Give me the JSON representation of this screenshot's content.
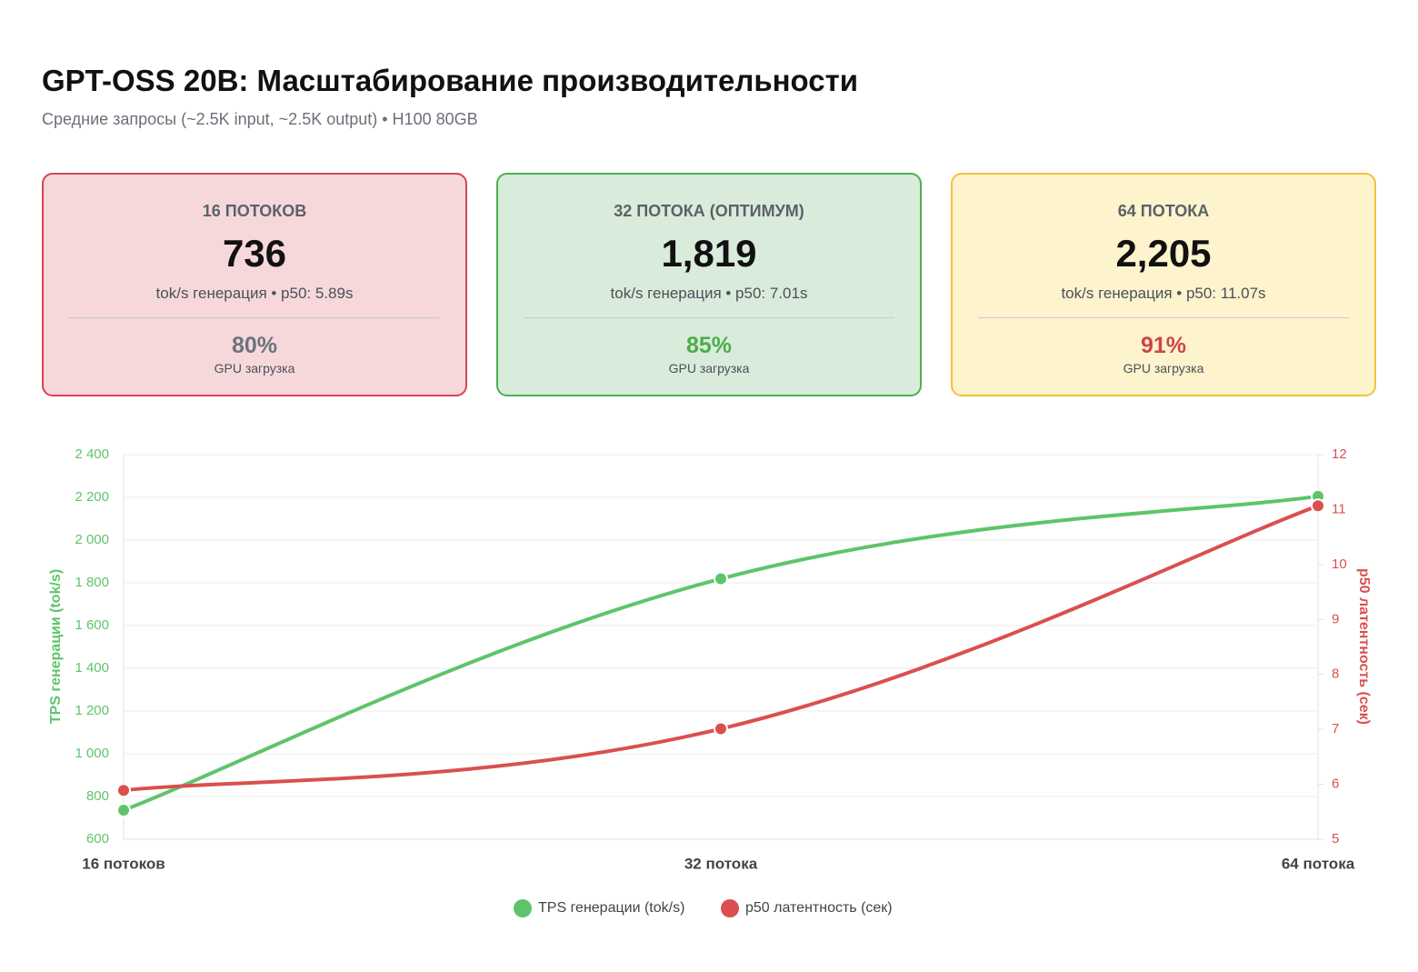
{
  "header": {
    "title": "GPT-OSS 20B: Масштабирование производительности",
    "subtitle": "Средние запросы (~2.5K input, ~2.5K output) • H100 80GB"
  },
  "cards": [
    {
      "label": "16 ПОТОКОВ",
      "value": "736",
      "desc": "tok/s генерация • p50: 5.89s",
      "gpu": "80%",
      "gpu_label": "GPU загрузка"
    },
    {
      "label": "32 ПОТОКА (ОПТИМУМ)",
      "value": "1,819",
      "desc": "tok/s генерация • p50: 7.01s",
      "gpu": "85%",
      "gpu_label": "GPU загрузка"
    },
    {
      "label": "64 ПОТОКА",
      "value": "2,205",
      "desc": "tok/s генерация • p50: 11.07s",
      "gpu": "91%",
      "gpu_label": "GPU загрузка"
    }
  ],
  "chart_data": {
    "type": "line",
    "categories": [
      "16 потоков",
      "32 потока",
      "64 потока"
    ],
    "series": [
      {
        "name": "TPS генерации (tok/s)",
        "color": "#5ec46a",
        "values": [
          736,
          1819,
          2205
        ],
        "axis": "y"
      },
      {
        "name": "p50 латентность (сек)",
        "color": "#d9504f",
        "values": [
          5.89,
          7.01,
          11.07
        ],
        "axis": "y2"
      }
    ],
    "y_label": "TPS генерации (tok/s)",
    "y2_label": "p50 латентность (сек)",
    "ylim": [
      600,
      2400
    ],
    "yticks": [
      600,
      800,
      {
        "value": 1000,
        "label": "1 000"
      },
      {
        "value": 1200,
        "label": "1 200"
      },
      {
        "value": 1400,
        "label": "1 400"
      },
      {
        "value": 1600,
        "label": "1 600"
      },
      {
        "value": 1800,
        "label": "1 800"
      },
      {
        "value": 2000,
        "label": "2 000"
      },
      {
        "value": 2200,
        "label": "2 200"
      },
      {
        "value": 2400,
        "label": "2 400"
      }
    ],
    "y2lim": [
      5,
      12
    ],
    "y2ticks": [
      5,
      6,
      7,
      8,
      9,
      10,
      11,
      12
    ],
    "grid": true,
    "legend": "bottom"
  }
}
